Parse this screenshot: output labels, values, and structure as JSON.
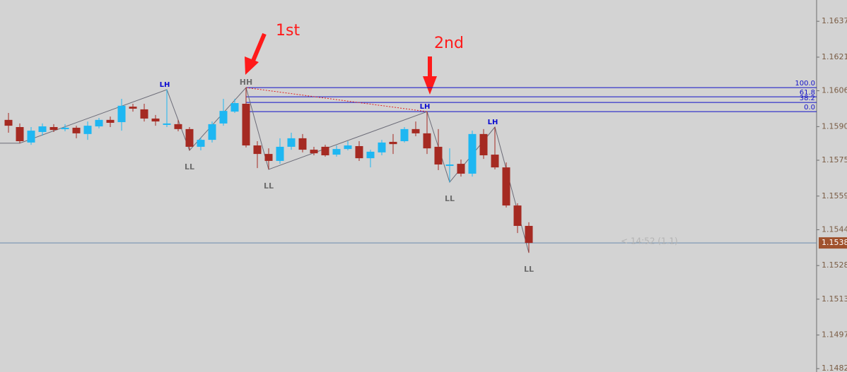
{
  "chart_data": {
    "type": "candlestick",
    "up_color": "#1eb7f2",
    "down_color": "#a52a22",
    "open": [
      1.1593,
      1.15898,
      1.15829,
      1.15876,
      1.15898,
      1.15892,
      1.15895,
      1.15867,
      1.15901,
      1.1593,
      1.1592,
      1.15989,
      1.15977,
      1.15936,
      1.15911,
      1.15911,
      1.15889,
      1.1581,
      1.15841,
      1.15914,
      1.15967,
      1.16002,
      1.15816,
      1.15778,
      1.15747,
      1.1581,
      1.15848,
      1.15797,
      1.1581,
      1.15775,
      1.158,
      1.15813,
      1.15759,
      1.15785,
      1.15832,
      1.15835,
      1.15889,
      1.1587,
      1.1581,
      1.15728,
      1.15734,
      1.1569,
      1.15867,
      1.15775,
      1.15718,
      1.15548,
      1.15457
    ],
    "high": [
      1.15961,
      1.15914,
      1.15898,
      1.15914,
      1.15911,
      1.15911,
      1.15904,
      1.15923,
      1.15939,
      1.15945,
      1.16024,
      1.16002,
      1.16002,
      1.15952,
      1.16065,
      1.1593,
      1.15898,
      1.15851,
      1.15923,
      1.16024,
      1.16024,
      1.16074,
      1.15835,
      1.15803,
      1.15848,
      1.15873,
      1.15867,
      1.1581,
      1.15819,
      1.15816,
      1.15835,
      1.15835,
      1.15797,
      1.15841,
      1.15867,
      1.15898,
      1.15923,
      1.15967,
      1.15889,
      1.15803,
      1.15753,
      1.15882,
      1.15889,
      1.15898,
      1.1574,
      1.15558,
      1.15473
    ],
    "low": [
      1.15873,
      1.15826,
      1.15819,
      1.1586,
      1.15876,
      1.15879,
      1.15848,
      1.15841,
      1.15892,
      1.15898,
      1.15882,
      1.15967,
      1.15923,
      1.15904,
      1.15898,
      1.15879,
      1.15794,
      1.15794,
      1.15829,
      1.15904,
      1.15961,
      1.15807,
      1.15715,
      1.15709,
      1.15734,
      1.15797,
      1.15785,
      1.15772,
      1.15766,
      1.15766,
      1.15794,
      1.15747,
      1.15718,
      1.15772,
      1.15778,
      1.15829,
      1.15857,
      1.15778,
      1.15706,
      1.15652,
      1.15677,
      1.15677,
      1.15756,
      1.15709,
      1.15539,
      1.15425,
      1.15337
    ],
    "close": [
      1.15904,
      1.15835,
      1.15882,
      1.15901,
      1.15885,
      1.15895,
      1.1587,
      1.15904,
      1.1593,
      1.15917,
      1.15993,
      1.1598,
      1.15936,
      1.15923,
      1.15914,
      1.15889,
      1.1581,
      1.15841,
      1.15911,
      1.1597,
      1.16005,
      1.15816,
      1.15778,
      1.15747,
      1.1581,
      1.15848,
      1.15797,
      1.15781,
      1.15772,
      1.158,
      1.15816,
      1.15759,
      1.15788,
      1.15829,
      1.15822,
      1.15889,
      1.1587,
      1.15803,
      1.15731,
      1.15731,
      1.1569,
      1.15867,
      1.15772,
      1.15718,
      1.15548,
      1.15457,
      1.15381
    ],
    "ylim": [
      1.14805,
      1.16465
    ],
    "yticks": [
      1.1637,
      1.1621,
      1.1606,
      {
        "value": 1.159,
        "label": "1.1590"
      },
      1.1575,
      1.1559,
      1.1544,
      1.1528,
      1.1513,
      1.1497,
      1.1482
    ],
    "current_price": {
      "value": 1.15381,
      "label": "1.1538"
    },
    "timer_label": "< 14:52 (1.1)",
    "fibo_levels": [
      {
        "value": 100,
        "label": "100.0"
      },
      61.8,
      38.2,
      {
        "value": 0,
        "label": "0.0"
      }
    ],
    "swing_labels": [
      "LH",
      "LL",
      "HH",
      "LL",
      "LH",
      "LL",
      "LH",
      "LL"
    ],
    "annotations": [
      "1st",
      "2nd"
    ]
  }
}
